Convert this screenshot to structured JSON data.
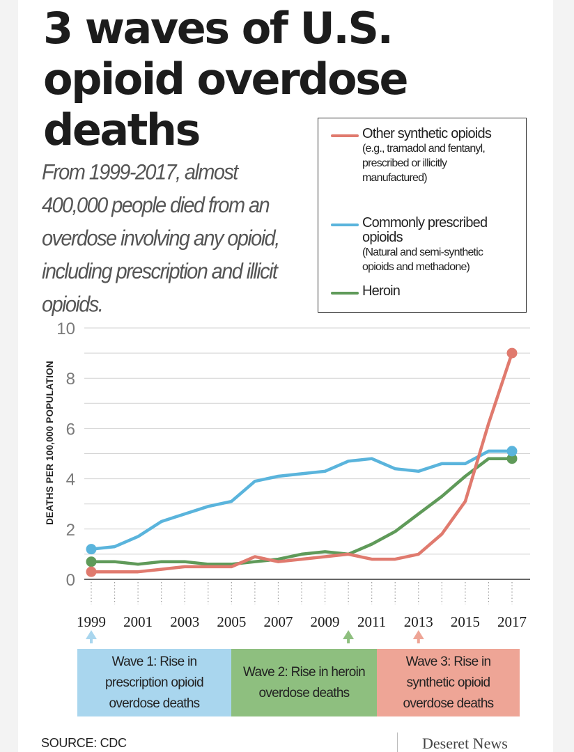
{
  "title": "3 waves of U.S. opioid overdose deaths",
  "subtitle": "From 1999-2017, almost 400,000 people died from an overdose involving any opioid, including prescription and illicit opioids.",
  "legend": [
    {
      "label": "Other synthetic opioids",
      "desc": "(e.g., tramadol and fentanyl, prescribed or illicitly manufactured)",
      "color": "#e07a6e"
    },
    {
      "label": "Commonly prescribed opioids",
      "desc": "(Natural and semi-synthetic opioids and methadone)",
      "color": "#5ab4dc"
    },
    {
      "label": "Heroin",
      "desc": "",
      "color": "#5f9a59"
    }
  ],
  "waves": [
    {
      "label": "Wave 1: Rise in prescription opioid overdose deaths",
      "year": 1999,
      "fill": "#a9d6ee",
      "arrow": "#a9d6ee"
    },
    {
      "label": "Wave 2: Rise in heroin overdose deaths",
      "year": 2010,
      "fill": "#8ebf7f",
      "arrow": "#8ebf7f"
    },
    {
      "label": "Wave 3: Rise in synthetic opioid overdose deaths",
      "year": 2013,
      "fill": "#eea596",
      "arrow": "#eea596"
    }
  ],
  "source": "SOURCE: CDC",
  "publisher": "Deseret News",
  "chart_data": {
    "type": "line",
    "title": "3 waves of U.S. opioid overdose deaths",
    "ylabel": "DEATHS PER 100,000 POPULATION",
    "xlabel": "",
    "ylim": [
      0,
      10
    ],
    "xlim": [
      1999,
      2017
    ],
    "yticks": [
      0,
      2,
      4,
      6,
      8,
      10
    ],
    "xticks": [
      1999,
      2001,
      2003,
      2005,
      2007,
      2009,
      2011,
      2013,
      2015,
      2017
    ],
    "grid": true,
    "legend_position": "top-right",
    "x": [
      1999,
      2000,
      2001,
      2002,
      2003,
      2004,
      2005,
      2006,
      2007,
      2008,
      2009,
      2010,
      2011,
      2012,
      2013,
      2014,
      2015,
      2016,
      2017
    ],
    "series": [
      {
        "name": "Other synthetic opioids",
        "color": "#e07a6e",
        "values": [
          0.3,
          0.3,
          0.3,
          0.4,
          0.5,
          0.5,
          0.5,
          0.9,
          0.7,
          0.8,
          0.9,
          1.0,
          0.8,
          0.8,
          1.0,
          1.8,
          3.1,
          6.2,
          9.0
        ]
      },
      {
        "name": "Commonly prescribed opioids",
        "color": "#5ab4dc",
        "values": [
          1.2,
          1.3,
          1.7,
          2.3,
          2.6,
          2.9,
          3.1,
          3.9,
          4.1,
          4.2,
          4.3,
          4.7,
          4.8,
          4.4,
          4.3,
          4.6,
          4.6,
          5.1,
          5.1
        ]
      },
      {
        "name": "Heroin",
        "color": "#5f9a59",
        "values": [
          0.7,
          0.7,
          0.6,
          0.7,
          0.7,
          0.6,
          0.6,
          0.7,
          0.8,
          1.0,
          1.1,
          1.0,
          1.4,
          1.9,
          2.6,
          3.3,
          4.1,
          4.8,
          4.8
        ]
      }
    ]
  }
}
